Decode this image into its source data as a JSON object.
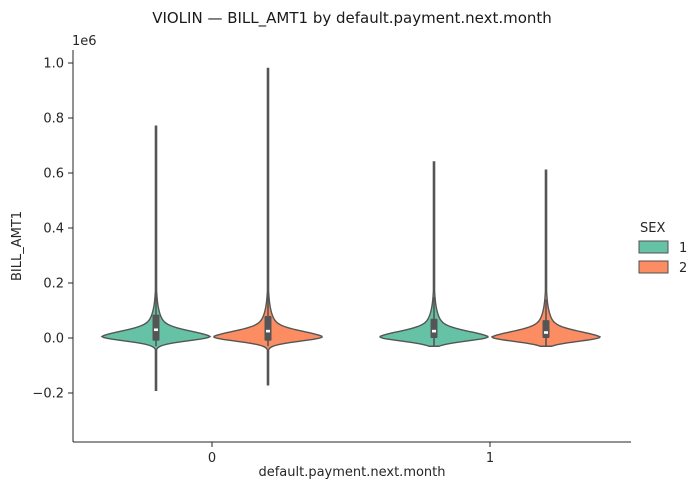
{
  "chart_data": {
    "type": "violin",
    "title": "VIOLIN — BILL_AMT1 by default.payment.next.month",
    "xlabel": "default.payment.next.month",
    "ylabel": "BILL_AMT1",
    "y_offset_text": "1e6",
    "categories": [
      "0",
      "1"
    ],
    "ylim": [
      -0.25,
      1.05
    ],
    "y_ticks": [
      -0.2,
      0.0,
      0.2,
      0.4,
      0.6,
      0.8,
      1.0
    ],
    "y_tick_labels": [
      "−0.2",
      "0.0",
      "0.2",
      "0.4",
      "0.6",
      "0.8",
      "1.0"
    ],
    "legend": {
      "title": "SEX",
      "placement": "right"
    },
    "series": [
      {
        "name": "1",
        "color": "#66c2a5",
        "violins": [
          {
            "category": "0",
            "min": -0.19,
            "max": 0.77,
            "q1": -0.01,
            "median": 0.03,
            "q3": 0.085,
            "whisker_low": -0.03,
            "whisker_high": 0.17
          },
          {
            "category": "1",
            "min": -0.03,
            "max": 0.64,
            "q1": 0.0,
            "median": 0.025,
            "q3": 0.07,
            "whisker_low": -0.03,
            "whisker_high": 0.15
          }
        ]
      },
      {
        "name": "2",
        "color": "#fc8d62",
        "violins": [
          {
            "category": "0",
            "min": -0.17,
            "max": 0.98,
            "q1": -0.01,
            "median": 0.025,
            "q3": 0.08,
            "whisker_low": -0.03,
            "whisker_high": 0.17
          },
          {
            "category": "1",
            "min": -0.03,
            "max": 0.61,
            "q1": 0.0,
            "median": 0.02,
            "q3": 0.065,
            "whisker_low": -0.03,
            "whisker_high": 0.14
          }
        ]
      }
    ]
  }
}
